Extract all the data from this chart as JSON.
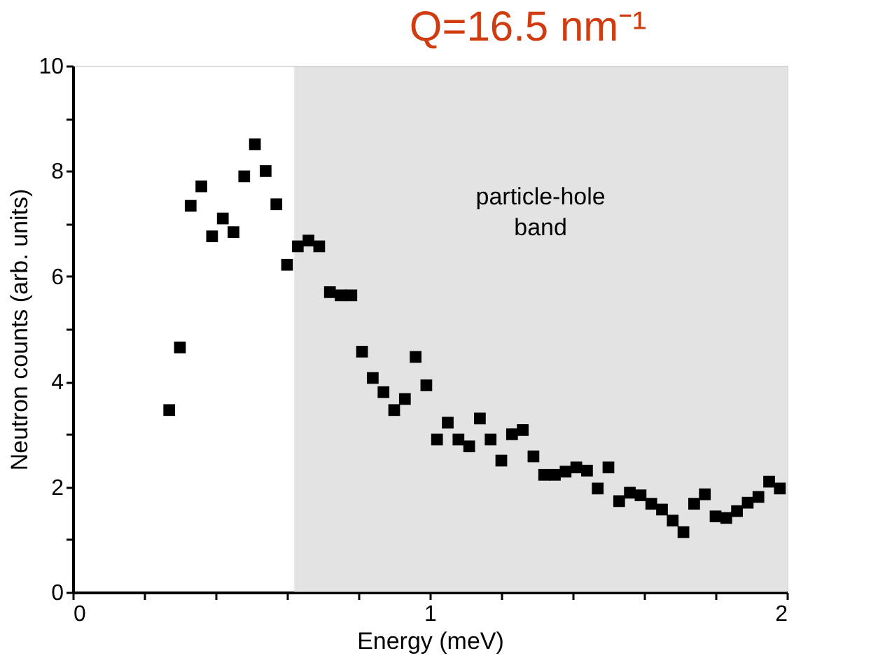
{
  "chart_data": {
    "type": "scatter",
    "title": "Q=16.5 nm⁻¹",
    "xlabel": "Energy  (meV)",
    "ylabel": "Neutron counts (arb. units)",
    "x": [
      0.27,
      0.3,
      0.33,
      0.36,
      0.39,
      0.42,
      0.45,
      0.48,
      0.51,
      0.54,
      0.57,
      0.6,
      0.63,
      0.66,
      0.69,
      0.72,
      0.75,
      0.78,
      0.81,
      0.84,
      0.87,
      0.9,
      0.93,
      0.96,
      0.99,
      1.02,
      1.05,
      1.08,
      1.11,
      1.14,
      1.17,
      1.2,
      1.23,
      1.26,
      1.29,
      1.32,
      1.35,
      1.38,
      1.41,
      1.44,
      1.47,
      1.5,
      1.53,
      1.56,
      1.59,
      1.62,
      1.65,
      1.68,
      1.71,
      1.74,
      1.77,
      1.8,
      1.83,
      1.86,
      1.89,
      1.92,
      1.95,
      1.98
    ],
    "series": [
      {
        "color": "#000000",
        "values": [
          3.46,
          4.65,
          7.34,
          7.71,
          6.76,
          7.1,
          6.84,
          7.9,
          8.51,
          8.0,
          7.37,
          6.22,
          6.57,
          6.68,
          6.57,
          5.7,
          5.64,
          5.64,
          4.57,
          4.07,
          3.8,
          3.46,
          3.67,
          4.47,
          3.93,
          2.9,
          3.22,
          2.9,
          2.77,
          3.3,
          2.9,
          2.5,
          3.0,
          3.08,
          2.58,
          2.23,
          2.23,
          2.29,
          2.37,
          2.31,
          1.97,
          2.37,
          1.73,
          1.89,
          1.84,
          1.68,
          1.57,
          1.36,
          1.14,
          1.68,
          1.86,
          1.44,
          1.41,
          1.54,
          1.7,
          1.81,
          2.1,
          1.97
        ]
      }
    ],
    "xlim": [
      0,
      2
    ],
    "ylim": [
      0,
      10
    ],
    "xticks": [
      0,
      {
        "value": 0.2,
        "label": null
      },
      {
        "value": 0.4,
        "label": null
      },
      {
        "value": 0.6,
        "label": null
      },
      {
        "value": 0.8,
        "label": null
      },
      1,
      {
        "value": 1.2,
        "label": null
      },
      {
        "value": 1.4,
        "label": null
      },
      {
        "value": 1.6,
        "label": null
      },
      {
        "value": 1.8,
        "label": null
      },
      2
    ],
    "yticks": [
      0,
      {
        "value": 1,
        "label": null
      },
      2,
      {
        "value": 3,
        "label": null
      },
      4,
      {
        "value": 5,
        "label": null
      },
      6,
      {
        "value": 7,
        "label": null
      },
      8,
      {
        "value": 9,
        "label": null
      },
      10
    ],
    "bands": [
      {
        "axis": "x",
        "from": 0.62,
        "to": 2,
        "label": "particle-hole band",
        "color": "#d0d0d0"
      }
    ],
    "marker": "square",
    "grid": false
  }
}
